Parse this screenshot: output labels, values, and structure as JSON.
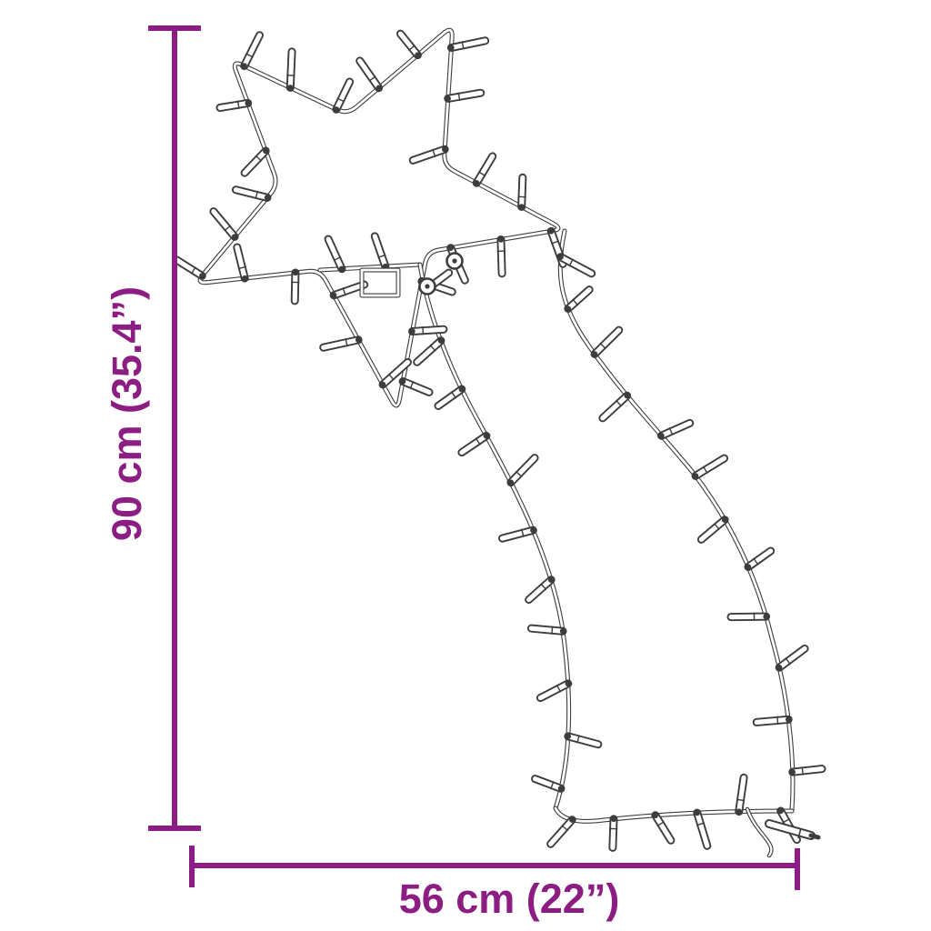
{
  "figure": {
    "label": "Shooting star LED light silhouette",
    "bulb_icon": "led-bulb"
  },
  "dimensions": {
    "height_label": "90 cm (35.4”)",
    "width_label": "56 cm (22”)"
  },
  "colors": {
    "accent": "#8C1D82",
    "wire": "#3D3D3D",
    "background": "#FFFFFF"
  }
}
